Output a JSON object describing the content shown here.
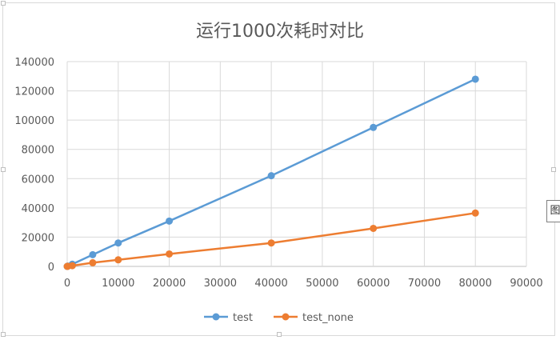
{
  "side_tag": "图",
  "chart_data": {
    "type": "line",
    "title": "运行1000次耗时对比",
    "xlabel": "",
    "ylabel": "",
    "xlim": [
      0,
      90000
    ],
    "ylim": [
      0,
      140000
    ],
    "xticks": [
      0,
      10000,
      20000,
      30000,
      40000,
      50000,
      60000,
      70000,
      80000,
      90000
    ],
    "yticks": [
      0,
      20000,
      40000,
      60000,
      80000,
      100000,
      120000,
      140000
    ],
    "grid": true,
    "legend_position": "bottom",
    "series": [
      {
        "name": "test",
        "color": "#5b9bd5",
        "x": [
          0,
          100,
          1000,
          5000,
          10000,
          20000,
          40000,
          60000,
          80000
        ],
        "y": [
          0,
          200,
          1500,
          8000,
          16000,
          31000,
          62000,
          95000,
          128000
        ]
      },
      {
        "name": "test_none",
        "color": "#ed7d31",
        "x": [
          0,
          100,
          1000,
          5000,
          10000,
          20000,
          40000,
          60000,
          80000
        ],
        "y": [
          0,
          100,
          500,
          2500,
          4500,
          8500,
          16000,
          26000,
          36500
        ]
      }
    ]
  }
}
